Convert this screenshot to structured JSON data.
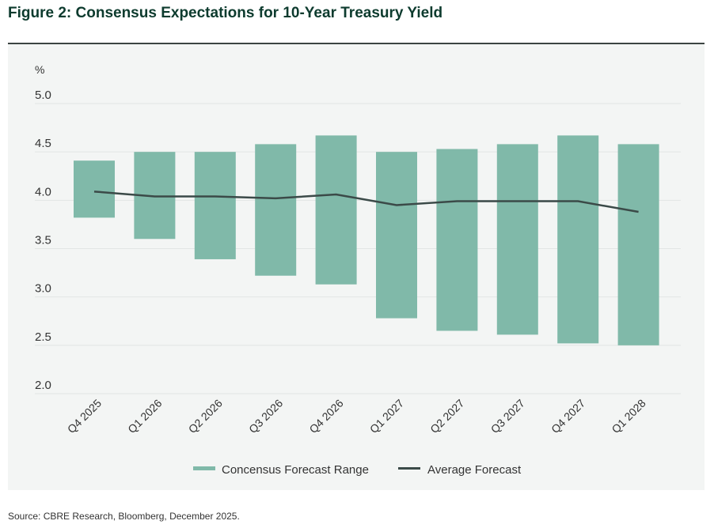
{
  "title": "Figure 2: Consensus Expectations for 10-Year Treasury Yield",
  "source": "Source: CBRE Research, Bloomberg, December 2025.",
  "chart_data": {
    "type": "bar",
    "ylabel": "%",
    "ylim": [
      2.0,
      5.0
    ],
    "yticks": [
      "5.0",
      "4.5",
      "4.0",
      "3.5",
      "3.0",
      "2.5",
      "2.0"
    ],
    "grid": true,
    "legend_placement": "bottom",
    "categories": [
      "Q4 2025",
      "Q1 2026",
      "Q2 2026",
      "Q3 2026",
      "Q4 2026",
      "Q1 2027",
      "Q2 2027",
      "Q3 2027",
      "Q4 2027",
      "Q1 2028"
    ],
    "series": [
      {
        "name": "Concensus Forecast Range",
        "type": "floating-bar",
        "color": "#80b9a9",
        "low": [
          3.82,
          3.6,
          3.39,
          3.22,
          3.13,
          2.78,
          2.65,
          2.61,
          2.52,
          2.5
        ],
        "high": [
          4.41,
          4.5,
          4.5,
          4.58,
          4.67,
          4.5,
          4.53,
          4.58,
          4.67,
          4.58
        ]
      },
      {
        "name": "Average Forecast",
        "type": "line",
        "color": "#3b4a48",
        "values": [
          4.09,
          4.04,
          4.04,
          4.02,
          4.06,
          3.95,
          3.99,
          3.99,
          3.99,
          3.88
        ]
      }
    ]
  }
}
